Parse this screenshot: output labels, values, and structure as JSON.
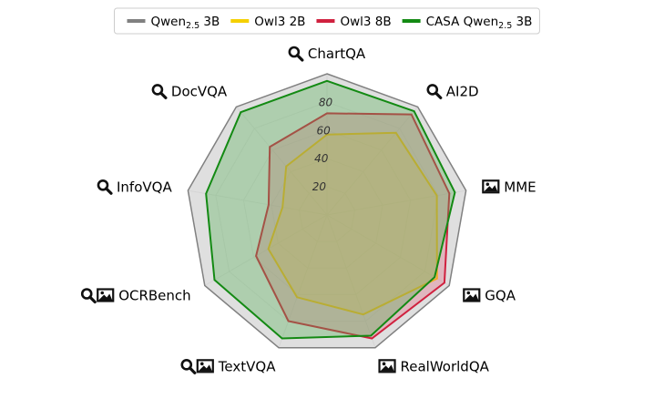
{
  "chart_data": {
    "type": "radar",
    "title": "",
    "rlim": [
      0,
      100
    ],
    "rticks": [
      20,
      40,
      60,
      80
    ],
    "rtick_labels": [
      "20",
      "40",
      "60",
      "80"
    ],
    "grid": true,
    "legend_position": "top-center",
    "categories": [
      {
        "name": "ChartQA",
        "icons": [
          "magnifier"
        ]
      },
      {
        "name": "AI2D",
        "icons": [
          "magnifier"
        ]
      },
      {
        "name": "MME",
        "icons": [
          "image"
        ]
      },
      {
        "name": "GQA",
        "icons": [
          "image"
        ]
      },
      {
        "name": "RealWorldQA",
        "icons": [
          "image"
        ]
      },
      {
        "name": "TextVQA",
        "icons": [
          "magnifier",
          "image"
        ]
      },
      {
        "name": "OCRBench",
        "icons": [
          "magnifier",
          "image"
        ]
      },
      {
        "name": "InfoVQA",
        "icons": [
          "magnifier"
        ]
      },
      {
        "name": "DocVQA",
        "icons": [
          "magnifier"
        ]
      }
    ],
    "series": [
      {
        "name_main": "Qwen",
        "name_sub": "2.5",
        "name_suffix": " 3B",
        "color": "#808080",
        "fill": "#d9d9d9",
        "fill_opacity": 0.85,
        "values": [
          100,
          100,
          100,
          100,
          100,
          100,
          100,
          100,
          100
        ]
      },
      {
        "name_main": "Owl3 2B",
        "name_sub": "",
        "name_suffix": "",
        "color": "#f5d000",
        "fill": "#f7df4d",
        "fill_opacity": 0.35,
        "values": [
          57,
          76,
          79,
          90,
          75,
          62,
          48,
          32,
          45
        ]
      },
      {
        "name_main": "Owl3 8B",
        "name_sub": "",
        "name_suffix": "",
        "color": "#d0213f",
        "fill": "#e35a75",
        "fill_opacity": 0.3,
        "values": [
          72,
          93,
          88,
          96,
          93,
          80,
          58,
          42,
          63
        ]
      },
      {
        "name_main": "CASA Qwen",
        "name_sub": "2.5",
        "name_suffix": " 3B",
        "color": "#138a13",
        "fill": "#52b052",
        "fill_opacity": 0.35,
        "values": [
          95,
          96,
          92,
          88,
          91,
          93,
          92,
          87,
          95
        ]
      }
    ]
  }
}
